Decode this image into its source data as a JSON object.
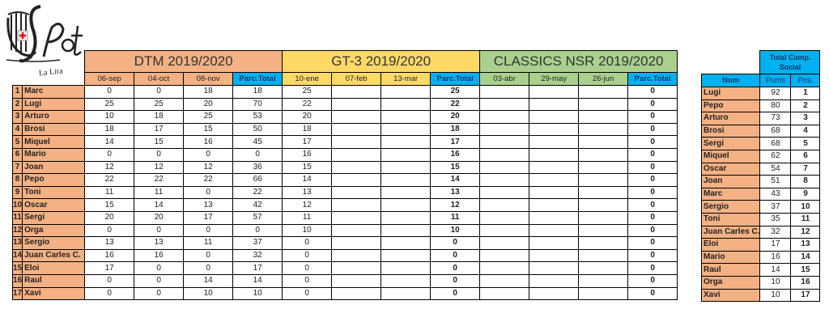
{
  "logo": {
    "text": "La Lira",
    "mark": "Pot"
  },
  "colors": {
    "dtm": "#F4B183",
    "gt3": "#FFD966",
    "classics": "#A9D08E",
    "total": "#00B0F0"
  },
  "main": {
    "sections": [
      {
        "title": "DTM 2019/2020",
        "dates": [
          "06-sep",
          "04-oct",
          "08-nov"
        ],
        "total_label": "Parc.Total"
      },
      {
        "title": "GT-3  2019/2020",
        "dates": [
          "10-ene",
          "07-feb",
          "13-mar"
        ],
        "total_label": "Parc.Total"
      },
      {
        "title": "CLASSICS NSR 2019/2020",
        "dates": [
          "03-abr",
          "29-may",
          "26-jun"
        ],
        "total_label": "Parc.Total"
      }
    ],
    "rows": [
      {
        "n": "1",
        "name": "Marc",
        "dtm": [
          "0",
          "0",
          "18",
          "18"
        ],
        "gt3": [
          "25",
          "",
          "",
          "25"
        ],
        "classics": [
          "",
          "",
          "",
          "0"
        ]
      },
      {
        "n": "2",
        "name": "Lugi",
        "dtm": [
          "25",
          "25",
          "20",
          "70"
        ],
        "gt3": [
          "22",
          "",
          "",
          "22"
        ],
        "classics": [
          "",
          "",
          "",
          "0"
        ]
      },
      {
        "n": "3",
        "name": "Arturo",
        "dtm": [
          "10",
          "18",
          "25",
          "53"
        ],
        "gt3": [
          "20",
          "",
          "",
          "20"
        ],
        "classics": [
          "",
          "",
          "",
          "0"
        ]
      },
      {
        "n": "4",
        "name": "Brosi",
        "dtm": [
          "18",
          "17",
          "15",
          "50"
        ],
        "gt3": [
          "18",
          "",
          "",
          "18"
        ],
        "classics": [
          "",
          "",
          "",
          "0"
        ]
      },
      {
        "n": "5",
        "name": "Miquel",
        "dtm": [
          "14",
          "15",
          "16",
          "45"
        ],
        "gt3": [
          "17",
          "",
          "",
          "17"
        ],
        "classics": [
          "",
          "",
          "",
          "0"
        ]
      },
      {
        "n": "6",
        "name": "Mario",
        "dtm": [
          "0",
          "0",
          "0",
          "0"
        ],
        "gt3": [
          "16",
          "",
          "",
          "16"
        ],
        "classics": [
          "",
          "",
          "",
          "0"
        ]
      },
      {
        "n": "7",
        "name": "Joan",
        "dtm": [
          "12",
          "12",
          "12",
          "36"
        ],
        "gt3": [
          "15",
          "",
          "",
          "15"
        ],
        "classics": [
          "",
          "",
          "",
          "0"
        ]
      },
      {
        "n": "8",
        "name": "Pepo",
        "dtm": [
          "22",
          "22",
          "22",
          "66"
        ],
        "gt3": [
          "14",
          "",
          "",
          "14"
        ],
        "classics": [
          "",
          "",
          "",
          "0"
        ]
      },
      {
        "n": "9",
        "name": "Toni",
        "dtm": [
          "11",
          "11",
          "0",
          "22"
        ],
        "gt3": [
          "13",
          "",
          "",
          "13"
        ],
        "classics": [
          "",
          "",
          "",
          "0"
        ]
      },
      {
        "n": "10",
        "name": "Oscar",
        "dtm": [
          "15",
          "14",
          "13",
          "42"
        ],
        "gt3": [
          "12",
          "",
          "",
          "12"
        ],
        "classics": [
          "",
          "",
          "",
          "0"
        ]
      },
      {
        "n": "11",
        "name": "Sergi",
        "dtm": [
          "20",
          "20",
          "17",
          "57"
        ],
        "gt3": [
          "11",
          "",
          "",
          "11"
        ],
        "classics": [
          "",
          "",
          "",
          "0"
        ]
      },
      {
        "n": "12",
        "name": "Orga",
        "dtm": [
          "0",
          "0",
          "0",
          "0"
        ],
        "gt3": [
          "10",
          "",
          "",
          "10"
        ],
        "classics": [
          "",
          "",
          "",
          "0"
        ]
      },
      {
        "n": "13",
        "name": "Sergio",
        "dtm": [
          "13",
          "13",
          "11",
          "37"
        ],
        "gt3": [
          "0",
          "",
          "",
          "0"
        ],
        "classics": [
          "",
          "",
          "",
          "0"
        ]
      },
      {
        "n": "14",
        "name": "Juan Carles C.",
        "dtm": [
          "16",
          "16",
          "0",
          "32"
        ],
        "gt3": [
          "0",
          "",
          "",
          "0"
        ],
        "classics": [
          "",
          "",
          "",
          "0"
        ]
      },
      {
        "n": "15",
        "name": "Eloi",
        "dtm": [
          "17",
          "0",
          "0",
          "17"
        ],
        "gt3": [
          "0",
          "",
          "",
          "0"
        ],
        "classics": [
          "",
          "",
          "",
          "0"
        ]
      },
      {
        "n": "16",
        "name": "Raul",
        "dtm": [
          "0",
          "0",
          "14",
          "14"
        ],
        "gt3": [
          "0",
          "",
          "",
          "0"
        ],
        "classics": [
          "",
          "",
          "",
          "0"
        ]
      },
      {
        "n": "17",
        "name": "Xavi",
        "dtm": [
          "0",
          "0",
          "10",
          "10"
        ],
        "gt3": [
          "0",
          "",
          "",
          "0"
        ],
        "classics": [
          "",
          "",
          "",
          "0"
        ]
      }
    ]
  },
  "standings": {
    "title": "Total Camp. Social",
    "headers": {
      "name": "Nom",
      "points": "Punts",
      "pos": "Pos."
    },
    "rows": [
      {
        "name": "Lugi",
        "points": "92",
        "pos": "1"
      },
      {
        "name": "Pepo",
        "points": "80",
        "pos": "2"
      },
      {
        "name": "Arturo",
        "points": "73",
        "pos": "3"
      },
      {
        "name": "Brosi",
        "points": "68",
        "pos": "4"
      },
      {
        "name": "Sergi",
        "points": "68",
        "pos": "5"
      },
      {
        "name": "Miquel",
        "points": "62",
        "pos": "6"
      },
      {
        "name": "Oscar",
        "points": "54",
        "pos": "7"
      },
      {
        "name": "Joan",
        "points": "51",
        "pos": "8"
      },
      {
        "name": "Marc",
        "points": "43",
        "pos": "9"
      },
      {
        "name": "Sergio",
        "points": "37",
        "pos": "10"
      },
      {
        "name": "Toni",
        "points": "35",
        "pos": "11"
      },
      {
        "name": "Juan Carles C.",
        "points": "32",
        "pos": "12"
      },
      {
        "name": "Eloi",
        "points": "17",
        "pos": "13"
      },
      {
        "name": "Mario",
        "points": "16",
        "pos": "14"
      },
      {
        "name": "Raul",
        "points": "14",
        "pos": "15"
      },
      {
        "name": "Orga",
        "points": "10",
        "pos": "16"
      },
      {
        "name": "Xavi",
        "points": "10",
        "pos": "17"
      }
    ]
  }
}
